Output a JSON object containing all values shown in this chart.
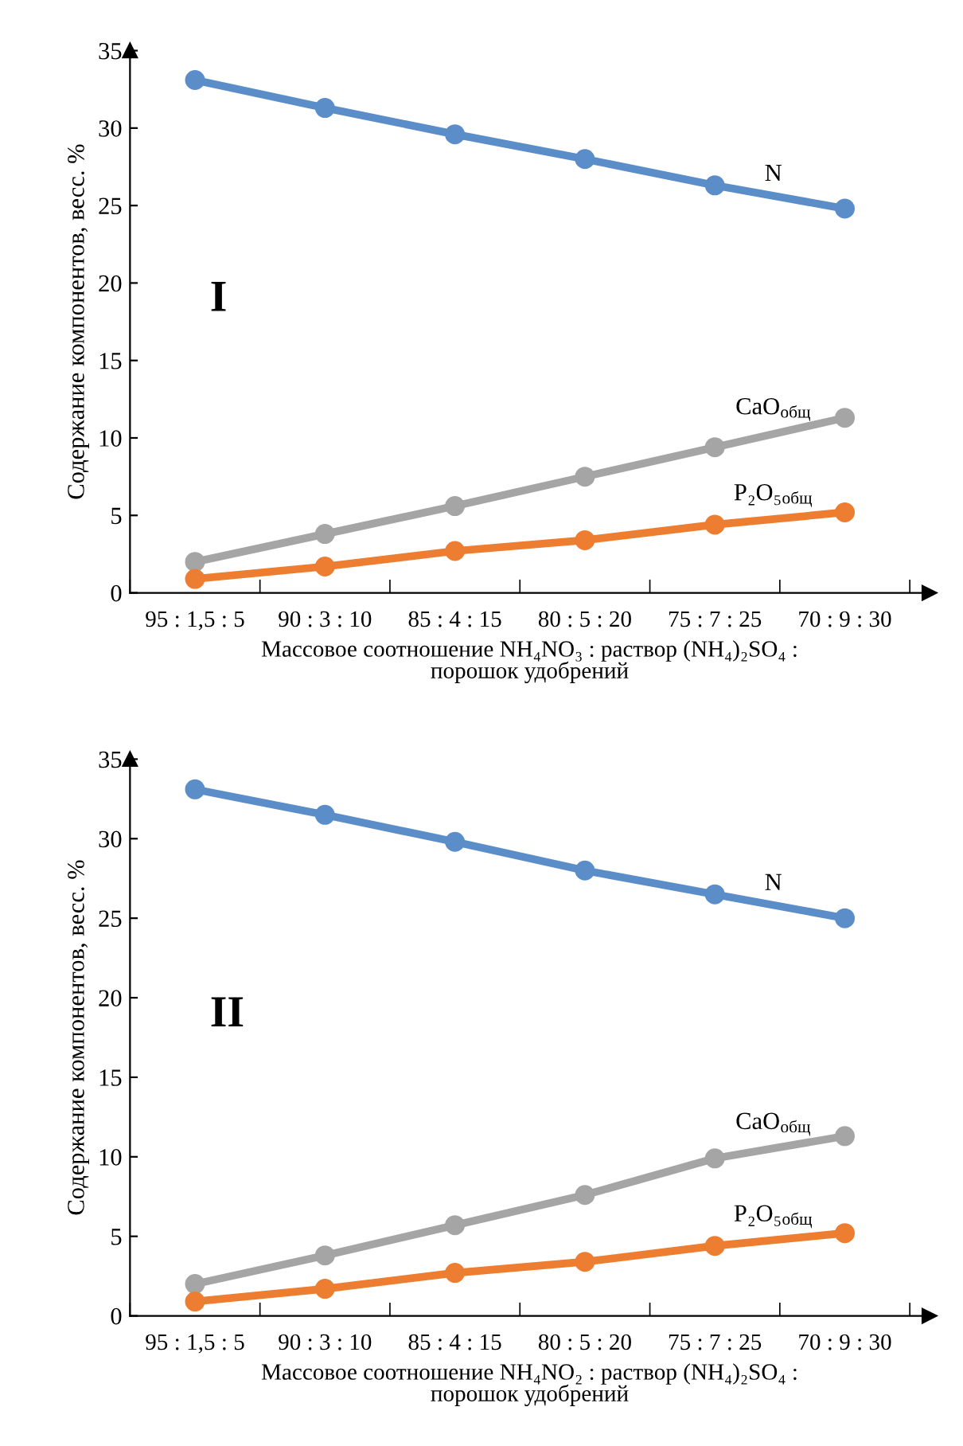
{
  "chart_data": [
    {
      "type": "line",
      "categories": [
        "95 : 1,5 : 5",
        "90 : 3 : 10",
        "85 : 4 : 15",
        "80 : 5 : 20",
        "75 : 7 : 25",
        "70 : 9 : 30"
      ],
      "ylabel": "Содержание компонентов, весс. %",
      "xlabel": "Массовое соотношение NH₄NO₃ : раствор (NH₄)₂SO₄ :\nпорошок удобрений",
      "ylim": [
        0,
        35
      ],
      "yticks": [
        0,
        5,
        10,
        15,
        20,
        25,
        30,
        35
      ],
      "marker": "circle",
      "grid": false,
      "legend": false,
      "annotations": [
        "I"
      ],
      "series": [
        {
          "name": "N",
          "color": "#5b8ec9",
          "values": [
            33.1,
            31.3,
            29.6,
            28.0,
            26.3,
            24.8
          ]
        },
        {
          "name": "CaO$_{общ}$",
          "color": "#a5a5a5",
          "values": [
            2.0,
            3.8,
            5.6,
            7.5,
            9.4,
            11.3
          ]
        },
        {
          "name": "P₂O₅$_{общ}$",
          "color": "#ed7d31",
          "values": [
            0.9,
            1.7,
            2.7,
            3.4,
            4.4,
            5.2
          ]
        }
      ]
    },
    {
      "type": "line",
      "categories": [
        "95 : 1,5 : 5",
        "90 : 3 : 10",
        "85 : 4 : 15",
        "80 : 5 : 20",
        "75 : 7 : 25",
        "70 : 9 : 30"
      ],
      "ylabel": "Содержание компонентов, весс. %",
      "xlabel": "Массовое соотношение NH₄NO₂ : раствор (NH₄)₂SO₄ :\nпорошок удобрений",
      "ylim": [
        0,
        35
      ],
      "yticks": [
        0,
        5,
        10,
        15,
        20,
        25,
        30,
        35
      ],
      "marker": "circle",
      "grid": false,
      "legend": false,
      "annotations": [
        "II"
      ],
      "series": [
        {
          "name": "N",
          "color": "#5b8ec9",
          "values": [
            33.1,
            31.5,
            29.8,
            28.0,
            26.5,
            25.0
          ]
        },
        {
          "name": "CaO$_{общ}$",
          "color": "#a5a5a5",
          "values": [
            2.0,
            3.8,
            5.7,
            7.6,
            9.9,
            11.3
          ]
        },
        {
          "name": "P₂O₅$_{общ}$",
          "color": "#ed7d31",
          "values": [
            0.9,
            1.7,
            2.7,
            3.4,
            4.4,
            5.2
          ]
        }
      ]
    }
  ]
}
